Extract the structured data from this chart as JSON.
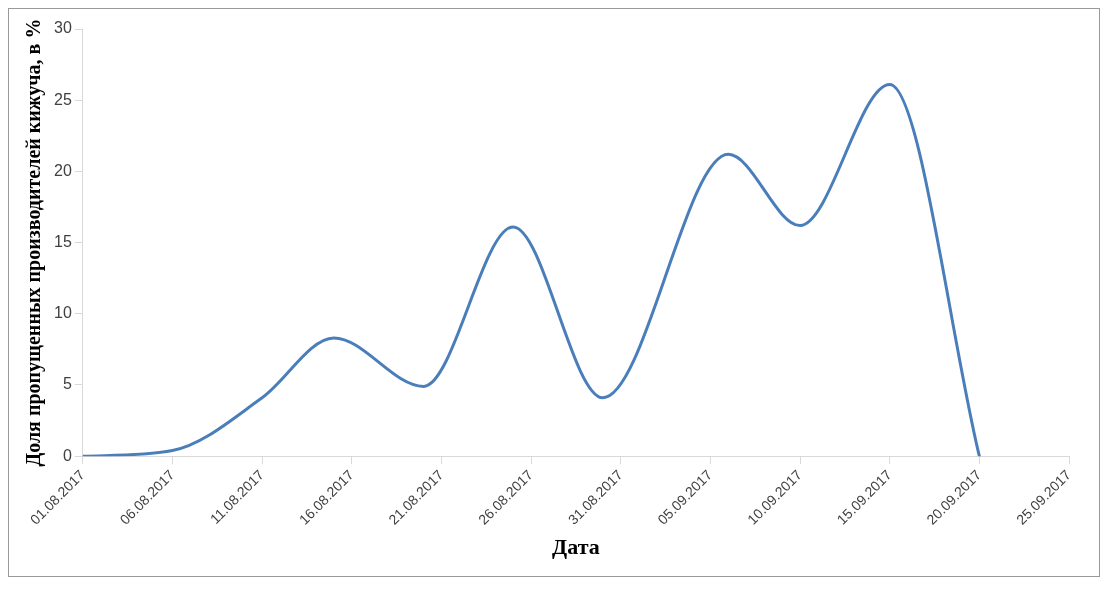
{
  "chart_data": {
    "type": "line",
    "xlabel": "Дата",
    "ylabel": "Доля пропущенных производителей кижуча, в %",
    "x": [
      "2017-08-01",
      "2017-08-06",
      "2017-08-11",
      "2017-08-15",
      "2017-08-20",
      "2017-08-25",
      "2017-08-30",
      "2017-09-06",
      "2017-09-10",
      "2017-09-15",
      "2017-09-20"
    ],
    "series": [
      {
        "color": "#4a7ebb",
        "values": [
          0,
          0.4,
          4.1,
          8.3,
          4.9,
          16.1,
          4.1,
          21.2,
          16.2,
          26.1,
          0
        ]
      }
    ],
    "xlim": [
      "2017-08-01",
      "2017-09-25"
    ],
    "xticks": [
      {
        "value": "2017-08-01",
        "label": "01.08.2017"
      },
      {
        "value": "2017-08-06",
        "label": "06.08.2017"
      },
      {
        "value": "2017-08-11",
        "label": "11.08.2017"
      },
      {
        "value": "2017-08-16",
        "label": "16.08.2017"
      },
      {
        "value": "2017-08-21",
        "label": "21.08.2017"
      },
      {
        "value": "2017-08-26",
        "label": "26.08.2017"
      },
      {
        "value": "2017-08-31",
        "label": "31.08.2017"
      },
      {
        "value": "2017-09-05",
        "label": "05.09.2017"
      },
      {
        "value": "2017-09-10",
        "label": "10.09.2017"
      },
      {
        "value": "2017-09-15",
        "label": "15.09.2017"
      },
      {
        "value": "2017-09-20",
        "label": "20.09.2017"
      },
      {
        "value": "2017-09-25",
        "label": "25.09.2017"
      }
    ],
    "ylim": [
      0,
      30
    ],
    "yticks": [
      0,
      5,
      10,
      15,
      20,
      25,
      30
    ],
    "grid": false,
    "legend": false,
    "marker": "none",
    "line_style": "solid"
  }
}
